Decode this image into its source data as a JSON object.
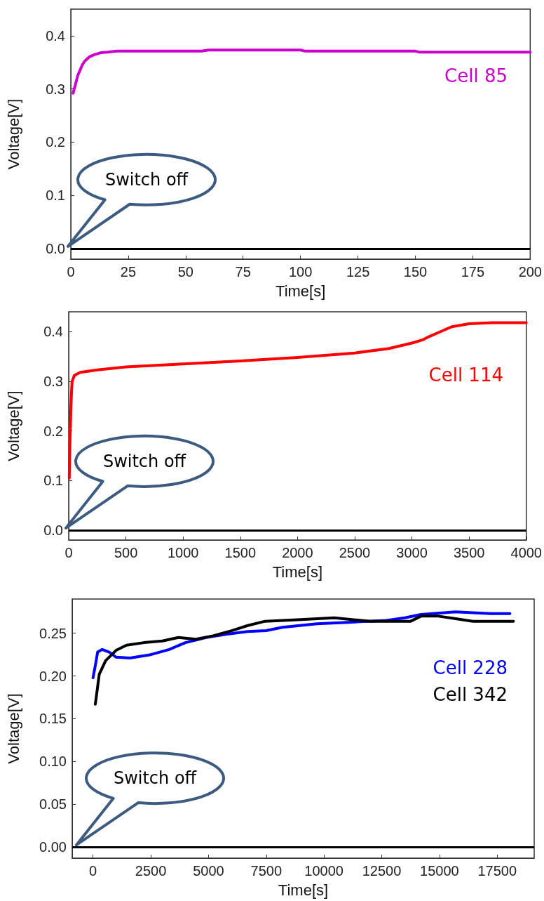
{
  "chart_data": [
    {
      "type": "line",
      "xlabel": "Time[s]",
      "ylabel": "Voltage[V]",
      "annotations": [
        "Switch off"
      ],
      "xlim": [
        0,
        200
      ],
      "ylim": [
        -0.02,
        0.45
      ],
      "xticks": [
        0,
        25,
        50,
        75,
        100,
        125,
        150,
        175,
        200
      ],
      "yticks": [
        {
          "value": 0,
          "label": "0.0"
        },
        0.1,
        0.2,
        0.3,
        0.4
      ],
      "ref_lines": [
        {
          "axis": "y",
          "value": 0,
          "color": "#000000"
        }
      ],
      "series": [
        {
          "name": "Cell 85",
          "color": "#cc00cc",
          "x": [
            1,
            2,
            3,
            4,
            5,
            6,
            8,
            10,
            13,
            16,
            20,
            30,
            57,
            60,
            100,
            102,
            150,
            152,
            200
          ],
          "values": [
            0.292,
            0.308,
            0.325,
            0.335,
            0.345,
            0.352,
            0.36,
            0.364,
            0.368,
            0.369,
            0.371,
            0.371,
            0.371,
            0.373,
            0.373,
            0.371,
            0.371,
            0.369,
            0.369
          ]
        }
      ]
    },
    {
      "type": "line",
      "xlabel": "Time[s]",
      "ylabel": "Voltage[V]",
      "annotations": [
        "Switch off"
      ],
      "xlim": [
        0,
        4000
      ],
      "ylim": [
        -0.02,
        0.44
      ],
      "xticks": [
        0,
        500,
        1000,
        1500,
        2000,
        2500,
        3000,
        3500,
        4000
      ],
      "yticks": [
        {
          "value": 0,
          "label": "0.0"
        },
        0.1,
        0.2,
        0.3,
        0.4
      ],
      "ref_lines": [
        {
          "axis": "y",
          "value": 0,
          "color": "#000000"
        }
      ],
      "series": [
        {
          "name": "Cell 114",
          "color": "#ff0000",
          "x": [
            5,
            10,
            15,
            20,
            25,
            30,
            50,
            100,
            250,
            500,
            1000,
            1500,
            2000,
            2500,
            2800,
            3000,
            3100,
            3150,
            3250,
            3350,
            3500,
            3700,
            4000
          ],
          "values": [
            0.105,
            0.17,
            0.21,
            0.25,
            0.28,
            0.3,
            0.312,
            0.318,
            0.323,
            0.329,
            0.335,
            0.341,
            0.348,
            0.357,
            0.366,
            0.377,
            0.384,
            0.39,
            0.4,
            0.41,
            0.416,
            0.418,
            0.418
          ]
        }
      ]
    },
    {
      "type": "line",
      "xlabel": "Time[s]",
      "ylabel": "Voltage[V]",
      "annotations": [
        "Switch off"
      ],
      "xlim": [
        -900,
        19100
      ],
      "ylim": [
        -0.013,
        0.29
      ],
      "xticks": [
        0,
        2500,
        5000,
        7500,
        10000,
        12500,
        15000,
        17500
      ],
      "yticks": [
        {
          "value": 0,
          "label": "0.00"
        },
        0.05,
        {
          "value": 0.1,
          "label": "0.10"
        },
        0.15,
        {
          "value": 0.2,
          "label": "0.20"
        },
        0.25
      ],
      "ref_lines": [
        {
          "axis": "y",
          "value": 0,
          "color": "#000000"
        }
      ],
      "series": [
        {
          "name": "Cell 228",
          "color": "#0000ff",
          "x": [
            0,
            100,
            200,
            400,
            700,
            1000,
            1600,
            2500,
            3300,
            4000,
            4900,
            5800,
            6700,
            7500,
            8200,
            9700,
            11200,
            12700,
            13500,
            14200,
            15700,
            17200,
            18050
          ],
          "values": [
            0.198,
            0.212,
            0.228,
            0.231,
            0.228,
            0.222,
            0.221,
            0.225,
            0.231,
            0.239,
            0.245,
            0.249,
            0.252,
            0.253,
            0.257,
            0.261,
            0.263,
            0.265,
            0.268,
            0.272,
            0.275,
            0.273,
            0.273
          ]
        },
        {
          "name": "Cell 342",
          "color": "#000000",
          "x": [
            100,
            150,
            270,
            550,
            1000,
            1450,
            2200,
            3000,
            3700,
            4450,
            5200,
            6000,
            6700,
            7450,
            9000,
            10450,
            11200,
            12000,
            13750,
            14200,
            14950,
            15700,
            16450,
            18200
          ],
          "values": [
            0.167,
            0.177,
            0.202,
            0.218,
            0.23,
            0.236,
            0.239,
            0.241,
            0.245,
            0.243,
            0.247,
            0.253,
            0.259,
            0.264,
            0.266,
            0.268,
            0.266,
            0.264,
            0.264,
            0.27,
            0.27,
            0.267,
            0.264,
            0.264
          ]
        }
      ]
    }
  ]
}
